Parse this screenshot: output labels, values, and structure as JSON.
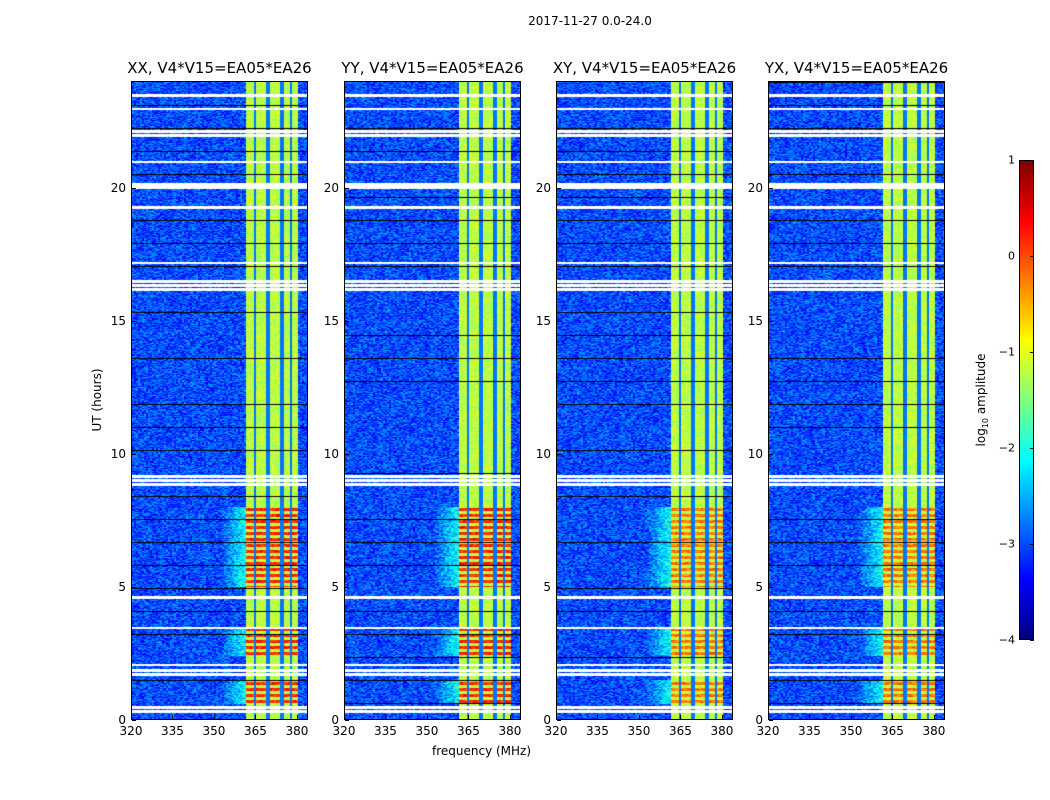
{
  "suptitle": "2017-11-27 0.0-24.0",
  "xlabel": "frequency (MHz)",
  "ylabel": "UT (hours)",
  "colorbar": {
    "label_prefix": "log",
    "label_sub": "10",
    "label_suffix": " amplitude",
    "ticks": [
      "1",
      "0",
      "−1",
      "−2",
      "−3",
      "−4"
    ],
    "tick_values": [
      1,
      0,
      -1,
      -2,
      -3,
      -4
    ],
    "range": [
      -4,
      1
    ],
    "colormap": "jet"
  },
  "x_ticks": [
    "320",
    "335",
    "350",
    "365",
    "380"
  ],
  "y_ticks": [
    "0",
    "5",
    "10",
    "15",
    "20"
  ],
  "chart_data": {
    "type": "heatmap",
    "title": "2017-11-27 0.0-24.0",
    "xlabel": "frequency (MHz)",
    "ylabel": "UT (hours)",
    "xlim": [
      320,
      384
    ],
    "ylim": [
      0,
      24
    ],
    "x_tick_values": [
      320,
      335,
      350,
      365,
      380
    ],
    "y_tick_values": [
      0,
      5,
      10,
      15,
      20
    ],
    "zlabel": "log10 amplitude",
    "zlim": [
      -4,
      1
    ],
    "panels": [
      {
        "title": "XX, V4*V15=EA05*EA26"
      },
      {
        "title": "YY, V4*V15=EA05*EA26"
      },
      {
        "title": "XY, V4*V15=EA05*EA26"
      },
      {
        "title": "YX, V4*V15=EA05*EA26"
      }
    ],
    "background_level": -3.0,
    "band_mhz": [
      361,
      380
    ],
    "band_level": -1.2,
    "band_gaps_mhz": [
      364.5,
      369.5,
      374.5,
      378.0
    ],
    "strong_intervals_hours": [
      [
        0.6,
        1.5
      ],
      [
        2.4,
        3.5
      ],
      [
        5.0,
        8.0
      ]
    ],
    "strong_level": 0.2,
    "flagged_hours": [
      0.3,
      0.45,
      1.7,
      1.85,
      2.05,
      3.45,
      4.6,
      8.85,
      9.0,
      9.15,
      16.2,
      16.35,
      16.5,
      17.2,
      19.3,
      20.05,
      20.15,
      21.0,
      22.0,
      22.15,
      23.0,
      23.5
    ]
  }
}
